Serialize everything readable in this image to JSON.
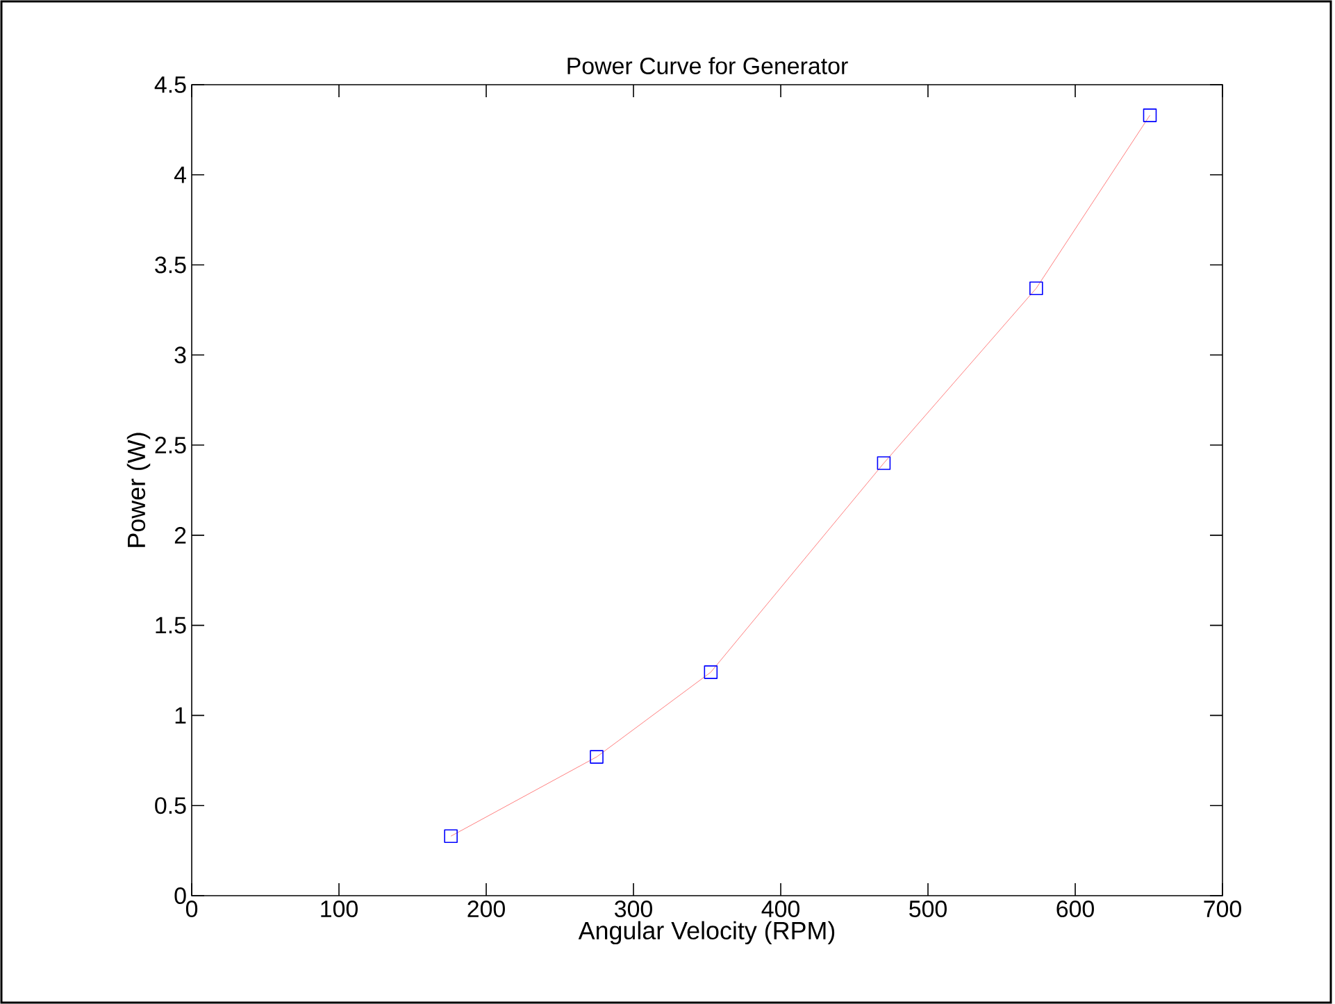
{
  "chart_data": {
    "type": "line",
    "title": "Power Curve for Generator",
    "xlabel": "Angular Velocity (RPM)",
    "ylabel": "Power (W)",
    "xlim": [
      0,
      700
    ],
    "xticks": [
      0,
      100,
      200,
      300,
      400,
      500,
      600,
      700
    ],
    "ylim": [
      0,
      4.5
    ],
    "yticks": [
      0,
      0.5,
      1,
      1.5,
      2,
      2.5,
      3,
      3.5,
      4,
      4.5
    ],
    "grid": false,
    "marker": "square",
    "line_style": "solid",
    "series": [
      {
        "color": "#ff8080",
        "x": [
          176,
          275,
          352.5,
          470,
          573.5,
          650.7
        ],
        "values": [
          0.33,
          0.77,
          1.24,
          2.4,
          3.37,
          4.33
        ]
      }
    ]
  }
}
